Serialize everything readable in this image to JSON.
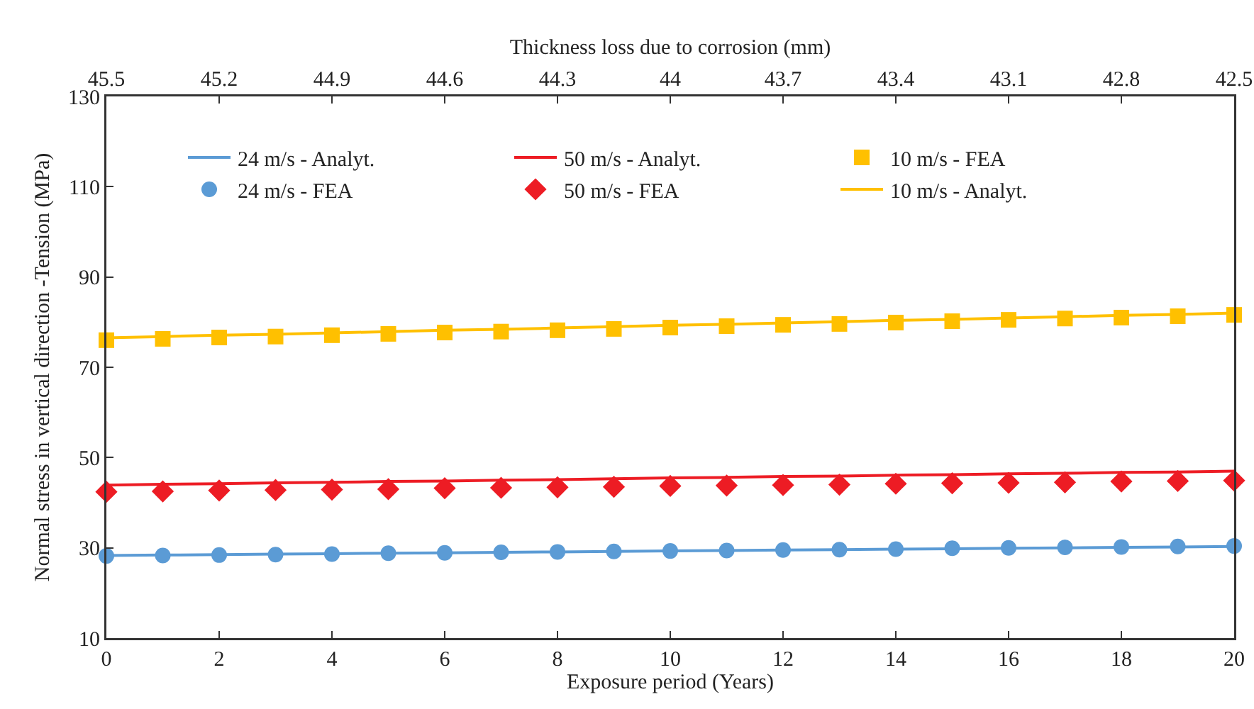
{
  "chart_data": {
    "type": "line",
    "xlabel": "Exposure period (Years)",
    "ylabel": "Normal stress in vertical direction -Tension (MPa)",
    "x2label": "Thickness loss due to corrosion (mm)",
    "x": [
      0,
      1,
      2,
      3,
      4,
      5,
      6,
      7,
      8,
      9,
      10,
      11,
      12,
      13,
      14,
      15,
      16,
      17,
      18,
      19,
      20
    ],
    "series": [
      {
        "name": "24 m/s - Analyt.",
        "color": "#5b9bd5",
        "marker": "none",
        "values": [
          28.3,
          28.4,
          28.5,
          28.6,
          28.7,
          28.8,
          28.9,
          29.0,
          29.1,
          29.2,
          29.3,
          29.4,
          29.5,
          29.6,
          29.7,
          29.8,
          29.9,
          30.0,
          30.1,
          30.2,
          30.3
        ]
      },
      {
        "name": "50 m/s - Analyt.",
        "color": "#ed1c24",
        "marker": "none",
        "values": [
          43.9,
          44.1,
          44.2,
          44.4,
          44.5,
          44.7,
          44.8,
          45.0,
          45.1,
          45.3,
          45.5,
          45.6,
          45.8,
          45.9,
          46.1,
          46.2,
          46.4,
          46.5,
          46.7,
          46.8,
          47.0
        ]
      },
      {
        "name": "10 m/s - FEA",
        "type": "scatter",
        "color": "#ffc000",
        "marker": "square",
        "values": [
          76,
          76.3,
          76.6,
          76.8,
          77.1,
          77.4,
          77.7,
          77.9,
          78.2,
          78.5,
          78.8,
          79.1,
          79.4,
          79.6,
          79.9,
          80.2,
          80.5,
          80.8,
          81.0,
          81.3,
          81.6
        ]
      },
      {
        "name": "24 m/s - FEA",
        "type": "scatter",
        "color": "#5b9bd5",
        "marker": "circle",
        "values": [
          28.2,
          28.3,
          28.4,
          28.5,
          28.6,
          28.8,
          28.9,
          29.0,
          29.1,
          29.2,
          29.3,
          29.4,
          29.5,
          29.6,
          29.7,
          29.9,
          30.0,
          30.1,
          30.2,
          30.3,
          30.4
        ]
      },
      {
        "name": "50 m/s - FEA",
        "type": "scatter",
        "color": "#ed1c24",
        "marker": "diamond",
        "values": [
          42.4,
          42.5,
          42.7,
          42.8,
          42.9,
          43.0,
          43.2,
          43.3,
          43.4,
          43.5,
          43.7,
          43.8,
          43.9,
          44.0,
          44.2,
          44.3,
          44.4,
          44.5,
          44.7,
          44.8,
          44.9
        ]
      },
      {
        "name": "10 m/s - Analyt.",
        "color": "#ffc000",
        "marker": "none",
        "values": [
          76.5,
          76.8,
          77.1,
          77.3,
          77.6,
          77.9,
          78.2,
          78.4,
          78.7,
          79.0,
          79.3,
          79.5,
          79.8,
          80.1,
          80.4,
          80.6,
          80.9,
          81.2,
          81.5,
          81.7,
          82.0
        ]
      }
    ],
    "xlim": [
      0,
      20
    ],
    "xticks": [
      0,
      2,
      4,
      6,
      8,
      10,
      12,
      14,
      16,
      18,
      20
    ],
    "ylim": [
      10,
      130
    ],
    "yticks": [
      10,
      30,
      50,
      70,
      90,
      110,
      130
    ],
    "x2lim": [
      45.5,
      42.5
    ],
    "x2ticks": [
      45.5,
      45.2,
      44.9,
      44.6,
      44.3,
      44,
      43.7,
      43.4,
      43.1,
      42.8,
      42.5
    ],
    "grid": false,
    "legend": "top"
  }
}
